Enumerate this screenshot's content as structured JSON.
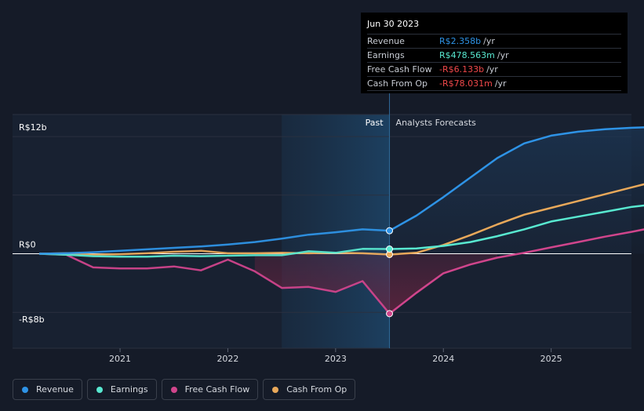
{
  "chart_data": {
    "type": "line",
    "y_unit": "R$ billions",
    "ylim": [
      -8,
      12
    ],
    "y_tick_labels": [
      "R$12b",
      "R$0",
      "-R$8b"
    ],
    "x_tick_labels": [
      "2021",
      "2022",
      "2023",
      "2024",
      "2025"
    ],
    "x_tick_values": [
      2021,
      2022,
      2023,
      2024,
      2025
    ],
    "past_label": "Past",
    "forecast_label": "Analysts Forecasts",
    "forecast_start": 2023.5,
    "shaded_region_start": 2022.5,
    "series": [
      {
        "name": "Revenue",
        "color": "#2e93e6",
        "points": [
          [
            2020.25,
            0.0
          ],
          [
            2020.5,
            0.05
          ],
          [
            2020.75,
            0.15
          ],
          [
            2021.0,
            0.3
          ],
          [
            2021.25,
            0.45
          ],
          [
            2021.5,
            0.6
          ],
          [
            2021.75,
            0.75
          ],
          [
            2022.0,
            0.95
          ],
          [
            2022.25,
            1.2
          ],
          [
            2022.5,
            1.55
          ],
          [
            2022.75,
            1.95
          ],
          [
            2023.0,
            2.2
          ],
          [
            2023.25,
            2.5
          ],
          [
            2023.5,
            2.358
          ],
          [
            2023.75,
            3.9
          ],
          [
            2024.0,
            5.8
          ],
          [
            2024.25,
            7.8
          ],
          [
            2024.5,
            9.8
          ],
          [
            2024.75,
            11.3
          ],
          [
            2025.0,
            12.1
          ],
          [
            2025.25,
            12.5
          ],
          [
            2025.5,
            12.75
          ],
          [
            2025.75,
            12.9
          ],
          [
            2026.0,
            13.0
          ]
        ]
      },
      {
        "name": "Earnings",
        "color": "#58e8d0",
        "points": [
          [
            2020.25,
            0.0
          ],
          [
            2020.5,
            -0.1
          ],
          [
            2020.75,
            -0.25
          ],
          [
            2021.0,
            -0.3
          ],
          [
            2021.25,
            -0.3
          ],
          [
            2021.5,
            -0.2
          ],
          [
            2021.75,
            -0.25
          ],
          [
            2022.0,
            -0.2
          ],
          [
            2022.25,
            -0.15
          ],
          [
            2022.5,
            -0.15
          ],
          [
            2022.75,
            0.25
          ],
          [
            2023.0,
            0.1
          ],
          [
            2023.25,
            0.5
          ],
          [
            2023.5,
            0.479
          ],
          [
            2023.75,
            0.55
          ],
          [
            2024.0,
            0.8
          ],
          [
            2024.25,
            1.2
          ],
          [
            2024.5,
            1.8
          ],
          [
            2024.75,
            2.5
          ],
          [
            2025.0,
            3.3
          ],
          [
            2025.25,
            3.8
          ],
          [
            2025.5,
            4.3
          ],
          [
            2025.75,
            4.8
          ],
          [
            2026.0,
            5.1
          ]
        ]
      },
      {
        "name": "Free Cash Flow",
        "color": "#d0458c",
        "points": [
          [
            2020.25,
            0.0
          ],
          [
            2020.5,
            -0.1
          ],
          [
            2020.75,
            -1.4
          ],
          [
            2021.0,
            -1.5
          ],
          [
            2021.25,
            -1.5
          ],
          [
            2021.5,
            -1.3
          ],
          [
            2021.75,
            -1.7
          ],
          [
            2022.0,
            -0.6
          ],
          [
            2022.25,
            -1.8
          ],
          [
            2022.5,
            -3.5
          ],
          [
            2022.75,
            -3.4
          ],
          [
            2023.0,
            -3.9
          ],
          [
            2023.25,
            -2.8
          ],
          [
            2023.5,
            -6.133
          ],
          [
            2023.75,
            -4.0
          ],
          [
            2024.0,
            -2.0
          ],
          [
            2024.25,
            -1.1
          ],
          [
            2024.5,
            -0.4
          ],
          [
            2024.75,
            0.1
          ],
          [
            2025.0,
            0.65
          ],
          [
            2025.25,
            1.2
          ],
          [
            2025.5,
            1.75
          ],
          [
            2025.75,
            2.25
          ],
          [
            2026.0,
            2.8
          ]
        ]
      },
      {
        "name": "Cash From Op",
        "color": "#e8a85a",
        "points": [
          [
            2020.25,
            0.0
          ],
          [
            2020.5,
            0.05
          ],
          [
            2020.75,
            -0.1
          ],
          [
            2021.0,
            -0.05
          ],
          [
            2021.25,
            0.05
          ],
          [
            2021.5,
            0.2
          ],
          [
            2021.75,
            0.3
          ],
          [
            2022.0,
            0.05
          ],
          [
            2022.25,
            0.05
          ],
          [
            2022.5,
            0.1
          ],
          [
            2022.75,
            0.05
          ],
          [
            2023.0,
            0.1
          ],
          [
            2023.25,
            0.05
          ],
          [
            2023.5,
            -0.078
          ],
          [
            2023.75,
            0.1
          ],
          [
            2024.0,
            0.9
          ],
          [
            2024.25,
            1.9
          ],
          [
            2024.5,
            3.0
          ],
          [
            2024.75,
            4.0
          ],
          [
            2025.0,
            4.7
          ],
          [
            2025.25,
            5.4
          ],
          [
            2025.5,
            6.1
          ],
          [
            2025.75,
            6.8
          ],
          [
            2026.0,
            7.5
          ]
        ]
      }
    ],
    "tooltip": {
      "date": "Jun 30 2023",
      "rows": [
        {
          "label": "Revenue",
          "value": "R$2.358b",
          "unit": "/yr",
          "color": "#2e93e6"
        },
        {
          "label": "Earnings",
          "value": "R$478.563m",
          "unit": "/yr",
          "color": "#58e8d0"
        },
        {
          "label": "Free Cash Flow",
          "value": "-R$6.133b",
          "unit": "/yr",
          "color": "#f0484a"
        },
        {
          "label": "Cash From Op",
          "value": "-R$78.031m",
          "unit": "/yr",
          "color": "#f0484a"
        }
      ]
    }
  },
  "legend": [
    {
      "label": "Revenue",
      "color": "#2e93e6"
    },
    {
      "label": "Earnings",
      "color": "#58e8d0"
    },
    {
      "label": "Free Cash Flow",
      "color": "#d0458c"
    },
    {
      "label": "Cash From Op",
      "color": "#e8a85a"
    }
  ]
}
